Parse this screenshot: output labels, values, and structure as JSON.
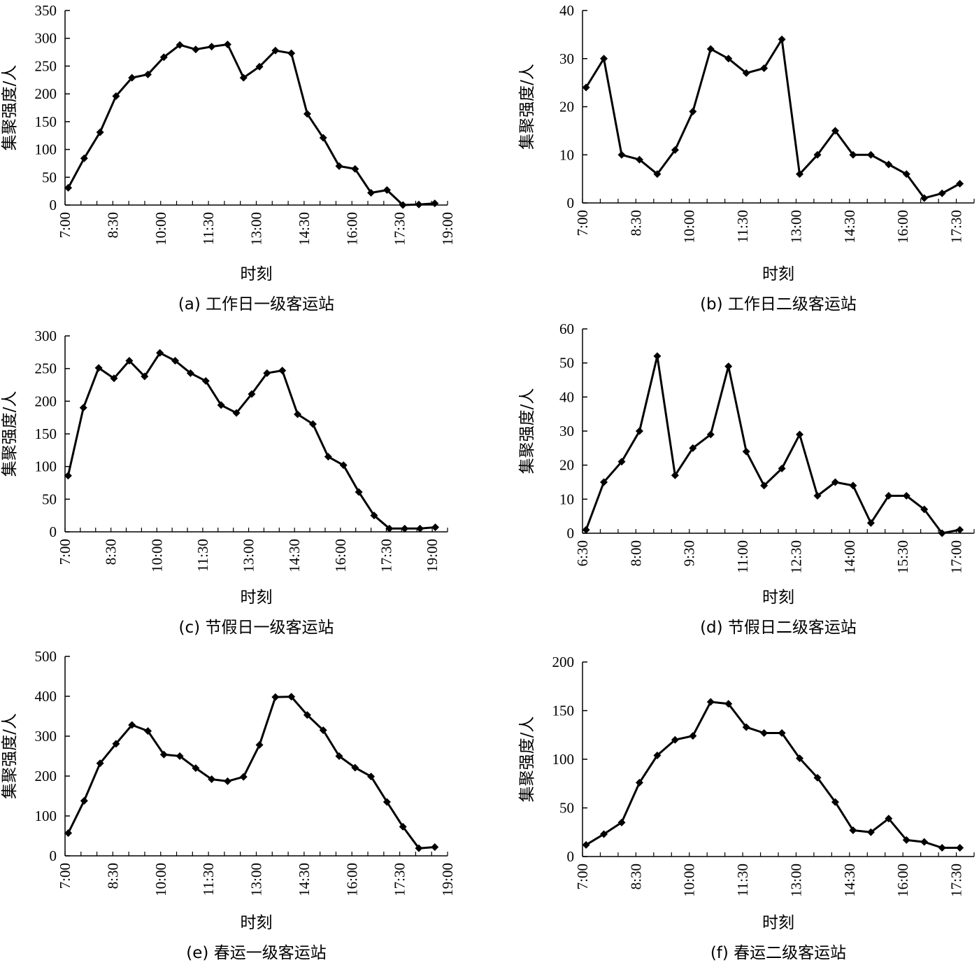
{
  "chart_data": [
    {
      "type": "line",
      "caption": "(a) 工作日一级客运站",
      "xlabel": "时刻",
      "ylabel": "集聚强度/人",
      "ylim": [
        0,
        350
      ],
      "yticks": [
        "0",
        "50",
        "100",
        "150",
        "200",
        "250",
        "300",
        "350"
      ],
      "xtick_labels": [
        "7:00",
        "8:30",
        "10:00",
        "11:30",
        "13:00",
        "14:30",
        "16:00",
        "17:30",
        "19:00"
      ],
      "x_start_minutes": 420,
      "x_end_minutes": 1140,
      "x_step_minutes": 90,
      "x": [
        7.1,
        7.6,
        8.1,
        8.6,
        9.1,
        9.6,
        10.1,
        10.6,
        11.1,
        11.6,
        12.1,
        12.6,
        13.1,
        13.6,
        14.1,
        14.6,
        15.1,
        15.6,
        16.1,
        16.6,
        17.1,
        17.6,
        18.1,
        18.6
      ],
      "values": [
        31,
        84,
        131,
        196,
        229,
        235,
        266,
        288,
        280,
        285,
        289,
        229,
        249,
        278,
        273,
        164,
        121,
        70,
        65,
        22,
        27,
        0,
        1,
        3
      ],
      "grid": false
    },
    {
      "type": "line",
      "caption": "(b) 工作日二级客运站",
      "xlabel": "时刻",
      "ylabel": "集聚强度/人",
      "ylim": [
        0,
        40
      ],
      "yticks": [
        "0",
        "10",
        "20",
        "30",
        "40"
      ],
      "xtick_labels": [
        "7:00",
        "8:30",
        "10:00",
        "11:30",
        "13:00",
        "14:30",
        "16:00",
        "17:30"
      ],
      "x_start_minutes": 420,
      "x_end_minutes": 1080,
      "x_step_minutes": 90,
      "x": [
        7.1,
        7.6,
        8.1,
        8.6,
        9.1,
        9.6,
        10.1,
        10.6,
        11.1,
        11.6,
        12.1,
        12.6,
        13.1,
        13.6,
        14.1,
        14.6,
        15.1,
        15.6,
        16.1,
        16.6,
        17.1,
        17.6
      ],
      "values": [
        24,
        30,
        10,
        9,
        6,
        11,
        19,
        32,
        30,
        27,
        28,
        34,
        6,
        10,
        15,
        10,
        10,
        8,
        6,
        1,
        2,
        4
      ],
      "grid": false
    },
    {
      "type": "line",
      "caption": "(c) 节假日一级客运站",
      "xlabel": "时刻",
      "ylabel": "集聚强度/人",
      "ylim": [
        0,
        300
      ],
      "yticks": [
        "0",
        "50",
        "100",
        "150",
        "200",
        "250",
        "300"
      ],
      "xtick_labels": [
        "7:00",
        "8:30",
        "10:00",
        "11:30",
        "13:00",
        "14:30",
        "16:00",
        "17:30",
        "19:00"
      ],
      "x_start_minutes": 420,
      "x_end_minutes": 1170,
      "x_step_minutes": 90,
      "x": [
        7.1,
        7.6,
        8.1,
        8.6,
        9.1,
        9.6,
        10.1,
        10.6,
        11.1,
        11.6,
        12.1,
        12.6,
        13.1,
        13.6,
        14.1,
        14.6,
        15.1,
        15.6,
        16.1,
        16.6,
        17.1,
        17.6,
        18.1,
        18.6,
        19.1
      ],
      "values": [
        86,
        190,
        251,
        235,
        262,
        238,
        274,
        262,
        243,
        231,
        194,
        182,
        211,
        243,
        247,
        180,
        165,
        115,
        102,
        61,
        25,
        5,
        5,
        5,
        7
      ],
      "grid": false
    },
    {
      "type": "line",
      "caption": "(d) 节假日二级客运站",
      "xlabel": "时刻",
      "ylabel": "集聚强度/人",
      "ylim": [
        0,
        60
      ],
      "yticks": [
        "0",
        "10",
        "20",
        "30",
        "40",
        "50",
        "60"
      ],
      "xtick_labels": [
        "6:30",
        "8:00",
        "9:30",
        "11:00",
        "12:30",
        "14:00",
        "15:30",
        "17:00"
      ],
      "x_start_minutes": 390,
      "x_end_minutes": 1050,
      "x_step_minutes": 90,
      "x": [
        6.6,
        7.1,
        7.6,
        8.1,
        8.6,
        9.1,
        9.6,
        10.1,
        10.6,
        11.1,
        11.6,
        12.1,
        12.6,
        13.1,
        13.6,
        14.1,
        14.6,
        15.1,
        15.6,
        16.1,
        16.6,
        17.1
      ],
      "values": [
        1,
        15,
        21,
        30,
        52,
        17,
        25,
        29,
        49,
        24,
        14,
        19,
        29,
        11,
        15,
        14,
        3,
        11,
        11,
        7,
        0,
        1
      ],
      "grid": false
    },
    {
      "type": "line",
      "caption": "(e) 春运一级客运站",
      "xlabel": "时刻",
      "ylabel": "集聚强度/人",
      "ylim": [
        0,
        500
      ],
      "yticks": [
        "0",
        "100",
        "200",
        "300",
        "400",
        "500"
      ],
      "xtick_labels": [
        "7:00",
        "8:30",
        "10:00",
        "11:30",
        "13:00",
        "14:30",
        "16:00",
        "17:30",
        "19:00"
      ],
      "x_start_minutes": 420,
      "x_end_minutes": 1140,
      "x_step_minutes": 90,
      "x": [
        7.1,
        7.6,
        8.1,
        8.6,
        9.1,
        9.6,
        10.1,
        10.6,
        11.1,
        11.6,
        12.1,
        12.6,
        13.1,
        13.6,
        14.1,
        14.6,
        15.1,
        15.6,
        16.1,
        16.6,
        17.1,
        17.6,
        18.1,
        18.6
      ],
      "values": [
        57,
        138,
        232,
        281,
        328,
        313,
        254,
        250,
        220,
        192,
        187,
        198,
        278,
        398,
        399,
        353,
        315,
        250,
        221,
        199,
        135,
        73,
        19,
        22
      ],
      "grid": false
    },
    {
      "type": "line",
      "caption": "(f) 春运二级客运站",
      "xlabel": "时刻",
      "ylabel": "集聚强度/人",
      "ylim": [
        0,
        200
      ],
      "yticks": [
        "0",
        "50",
        "100",
        "150",
        "200"
      ],
      "xtick_labels": [
        "7:00",
        "8:30",
        "10:00",
        "11:30",
        "13:00",
        "14:30",
        "16:00",
        "17:30"
      ],
      "x_start_minutes": 420,
      "x_end_minutes": 1080,
      "x_step_minutes": 90,
      "x": [
        7.1,
        7.6,
        8.1,
        8.6,
        9.1,
        9.6,
        10.1,
        10.6,
        11.1,
        11.6,
        12.1,
        12.6,
        13.1,
        13.6,
        14.1,
        14.6,
        15.1,
        15.6,
        16.1,
        16.6,
        17.1,
        17.6
      ],
      "values": [
        12,
        23,
        35,
        76,
        104,
        120,
        124,
        159,
        157,
        133,
        127,
        127,
        101,
        81,
        56,
        27,
        25,
        39,
        17,
        15,
        9,
        9
      ],
      "grid": false
    }
  ]
}
